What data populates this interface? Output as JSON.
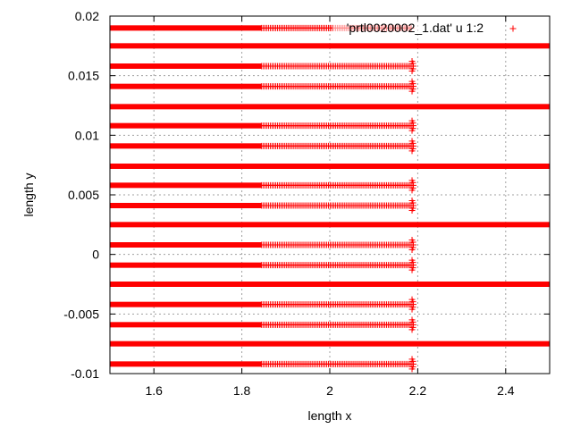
{
  "chart_data": {
    "type": "scatter",
    "title": "",
    "xlabel": "length x",
    "ylabel": "length y",
    "xlim": [
      1.5,
      2.5
    ],
    "ylim": [
      -0.01,
      0.02
    ],
    "xticks": [
      1.6,
      1.8,
      2.0,
      2.2,
      2.4
    ],
    "xtick_labels": [
      "1.6",
      "1.8",
      "2",
      "2.2",
      "2.4"
    ],
    "yticks": [
      -0.01,
      -0.005,
      0,
      0.005,
      0.01,
      0.015,
      0.02
    ],
    "ytick_labels": [
      "-0.01",
      "-0.005",
      "0",
      "0.005",
      "0.01",
      "0.015",
      "0.02"
    ],
    "grid": true,
    "legend": {
      "placement": "top-right",
      "label": "'prtl0020002_1.dat' u 1:2",
      "marker": "+"
    },
    "series": [
      {
        "name": "'prtl0020002_1.dat' u 1:2",
        "marker": "+",
        "color": "#ff0000",
        "rows": [
          {
            "y": 0.019,
            "x_start": 1.5,
            "dense_end": 1.845,
            "x_end": 2.185
          },
          {
            "y": 0.0175,
            "x_start": 1.5,
            "dense_end": 2.5,
            "x_end": 2.5
          },
          {
            "y": 0.0158,
            "x_start": 1.5,
            "dense_end": 1.845,
            "x_end": 2.185,
            "tip": true
          },
          {
            "y": 0.0141,
            "x_start": 1.5,
            "dense_end": 1.845,
            "x_end": 2.185,
            "tip": true
          },
          {
            "y": 0.0124,
            "x_start": 1.5,
            "dense_end": 2.5,
            "x_end": 2.5
          },
          {
            "y": 0.0108,
            "x_start": 1.5,
            "dense_end": 1.845,
            "x_end": 2.185,
            "tip": true
          },
          {
            "y": 0.0091,
            "x_start": 1.5,
            "dense_end": 1.845,
            "x_end": 2.185,
            "tip": true
          },
          {
            "y": 0.0074,
            "x_start": 1.5,
            "dense_end": 2.5,
            "x_end": 2.5
          },
          {
            "y": 0.0058,
            "x_start": 1.5,
            "dense_end": 1.845,
            "x_end": 2.185,
            "tip": true
          },
          {
            "y": 0.0041,
            "x_start": 1.5,
            "dense_end": 1.845,
            "x_end": 2.185,
            "tip": true
          },
          {
            "y": 0.0025,
            "x_start": 1.5,
            "dense_end": 2.5,
            "x_end": 2.5
          },
          {
            "y": 0.0008,
            "x_start": 1.5,
            "dense_end": 1.845,
            "x_end": 2.185,
            "tip": true
          },
          {
            "y": -0.0009,
            "x_start": 1.5,
            "dense_end": 1.845,
            "x_end": 2.185,
            "tip": true
          },
          {
            "y": -0.0025,
            "x_start": 1.5,
            "dense_end": 2.5,
            "x_end": 2.5
          },
          {
            "y": -0.0042,
            "x_start": 1.5,
            "dense_end": 1.845,
            "x_end": 2.185,
            "tip": true
          },
          {
            "y": -0.0059,
            "x_start": 1.5,
            "dense_end": 1.845,
            "x_end": 2.185,
            "tip": true
          },
          {
            "y": -0.0075,
            "x_start": 1.5,
            "dense_end": 2.5,
            "x_end": 2.5
          },
          {
            "y": -0.0092,
            "x_start": 1.5,
            "dense_end": 1.845,
            "x_end": 2.185,
            "tip": true
          }
        ]
      }
    ]
  },
  "colors": {
    "series": "#ff0000",
    "grid": "#a0a0a0",
    "axis": "#000000"
  }
}
